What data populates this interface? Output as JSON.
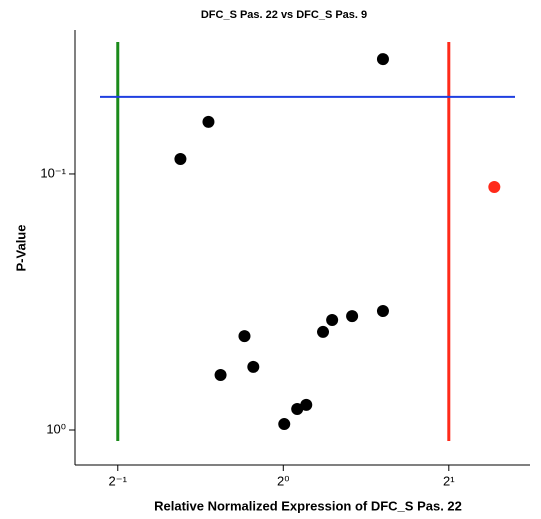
{
  "chart_data": {
    "type": "scatter",
    "title": "DFC_S Pas. 22 vs DFC_S Pas. 9",
    "x_label": "Relative Normalized Expression of DFC_S Pas. 22",
    "y_label": "P-Value",
    "x_scale": "log2",
    "y_scale": "log10",
    "xlim": [
      0.418,
      2.81
    ],
    "ylim": [
      1.37,
      0.0274
    ],
    "xticks": [
      {
        "value": 0.5,
        "label": "2⁻¹"
      },
      {
        "value": 1,
        "label": "2⁰"
      },
      {
        "value": 2,
        "label": "2¹"
      }
    ],
    "yticks": [
      {
        "value": 0.1,
        "label": "10⁻¹"
      },
      {
        "value": 1,
        "label": "10⁰"
      }
    ],
    "x": [
      1.518,
      0.731,
      0.65,
      2.42,
      1.518,
      1.334,
      1.227,
      1.181,
      0.85,
      0.769,
      0.882,
      1.101,
      1.06,
      1.004
    ],
    "values": [
      0.0356,
      0.0626,
      0.0874,
      0.1124,
      0.343,
      0.359,
      0.372,
      0.414,
      0.43,
      0.61,
      0.567,
      0.798,
      0.828,
      0.948
    ],
    "point_colors": [
      "#000000",
      "#000000",
      "#000000",
      "#ff2a1a",
      "#000000",
      "#000000",
      "#000000",
      "#000000",
      "#000000",
      "#000000",
      "#000000",
      "#000000",
      "#000000",
      "#000000"
    ],
    "hlines": [
      {
        "value": 0.05,
        "color": "#1f3fe0"
      }
    ],
    "vlines": [
      {
        "value": 0.5,
        "color": "#1a8a1a"
      },
      {
        "value": 2,
        "color": "#ff2a1a"
      }
    ]
  }
}
